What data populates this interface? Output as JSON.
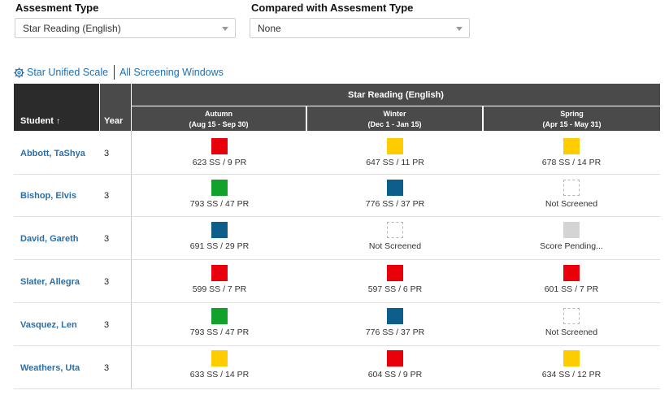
{
  "filters": {
    "assessment_label": "Assesment Type",
    "assessment_value": "Star Reading (English)",
    "compared_label": "Compared with Assesment Type",
    "compared_value": "None"
  },
  "links": {
    "scale": "Star Unified Scale",
    "windows": "All Screening Windows"
  },
  "table": {
    "student_header": "Student",
    "sort_arrow": "↑",
    "year_header": "Year",
    "group_header": "Star Reading (English)",
    "windows": [
      {
        "name": "Autumn",
        "range": "(Aug 15 - Sep 30)"
      },
      {
        "name": "Winter",
        "range": "(Dec 1 - Jan 15)"
      },
      {
        "name": "Spring",
        "range": "(Apr 15 - May 31)"
      }
    ],
    "rows": [
      {
        "student": "Abbott, TaShya",
        "year": "3",
        "cells": [
          {
            "color": "#e8000b",
            "score": "623 SS / 9 PR"
          },
          {
            "color": "#ffcc00",
            "score": "647 SS / 11 PR"
          },
          {
            "color": "#ffcc00",
            "score": "678 SS / 14 PR"
          }
        ]
      },
      {
        "student": "Bishop, Elvis",
        "year": "3",
        "cells": [
          {
            "color": "#12a12a",
            "score": "793 SS / 47 PR"
          },
          {
            "color": "#0e5e8c",
            "score": "776 SS / 37 PR"
          },
          {
            "color": "none",
            "score": "Not Screened"
          }
        ]
      },
      {
        "student": "David, Gareth",
        "year": "3",
        "cells": [
          {
            "color": "#0e5e8c",
            "score": "691 SS / 29 PR"
          },
          {
            "color": "none",
            "score": "Not Screened"
          },
          {
            "color": "#d4d4d4",
            "score": "Score Pending..."
          }
        ]
      },
      {
        "student": "Slater, Allegra",
        "year": "3",
        "cells": [
          {
            "color": "#e8000b",
            "score": "599 SS / 7 PR"
          },
          {
            "color": "#e8000b",
            "score": "597 SS / 6 PR"
          },
          {
            "color": "#e8000b",
            "score": "601 SS / 7 PR"
          }
        ]
      },
      {
        "student": "Vasquez, Len",
        "year": "3",
        "cells": [
          {
            "color": "#12a12a",
            "score": "793 SS / 47 PR"
          },
          {
            "color": "#0e5e8c",
            "score": "776 SS / 37 PR"
          },
          {
            "color": "none",
            "score": "Not Screened"
          }
        ]
      },
      {
        "student": "Weathers, Uta",
        "year": "3",
        "cells": [
          {
            "color": "#ffcc00",
            "score": "633 SS / 14 PR"
          },
          {
            "color": "#e8000b",
            "score": "604 SS / 9 PR"
          },
          {
            "color": "#ffcc00",
            "score": "634 SS / 12 PR"
          }
        ]
      }
    ]
  }
}
